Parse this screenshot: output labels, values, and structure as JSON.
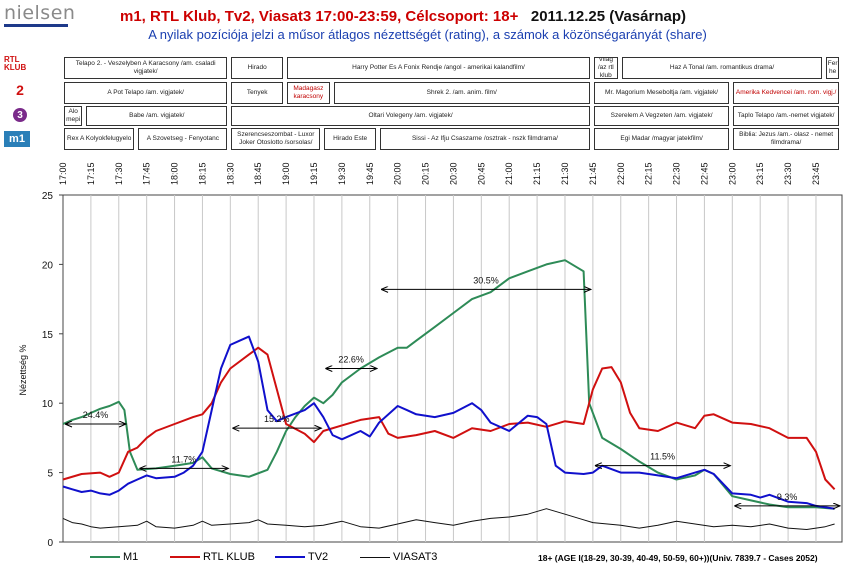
{
  "header": {
    "logo": "nielsen",
    "title_channels": "m1, RTL Klub, Tv2, Viasat3 17:00-23:59, Célcsoport: 18+",
    "title_date": "2011.12.25 (Vasárnap)",
    "subtitle": "A nyilak pozíciója jelzi a műsor átlagos nézettségét (rating), a számok a közönségarányát (share)"
  },
  "channel_icons": {
    "rtl": "RTL KLUB",
    "tv2": "2",
    "viasat3": "3",
    "m1": "m1"
  },
  "programs": {
    "rtl": [
      {
        "title": "Telapo 2. - Veszelyben A Karacsony /am. csaladi vigjatek/",
        "start": "17:00",
        "end": "18:30"
      },
      {
        "title": "Hirado",
        "start": "18:30",
        "end": "19:00"
      },
      {
        "title": "Harry Potter Es A Fonix Rendje /angol - amerikai kalandfilm/",
        "start": "19:00",
        "end": "21:45"
      },
      {
        "title": "Valo Vilag /az rtl klub valosag",
        "start": "21:45",
        "end": "22:00"
      },
      {
        "title": "Haz A Tonal /am. romantikus drama/",
        "start": "22:00",
        "end": "23:50"
      },
      {
        "title": "Fer he",
        "start": "23:50",
        "end": "23:59"
      }
    ],
    "tv2": [
      {
        "title": "A Pot Telapo /am. vigjatek/",
        "start": "17:00",
        "end": "18:30"
      },
      {
        "title": "Tenyek",
        "start": "18:30",
        "end": "19:00"
      },
      {
        "title": "Madagasz karacsony",
        "start": "19:00",
        "end": "19:25"
      },
      {
        "title": "Shrek 2. /am. anim. film/",
        "start": "19:25",
        "end": "21:45"
      },
      {
        "title": "Mr. Magorium Meseboltja /am. vigjatek/",
        "start": "21:45",
        "end": "23:00"
      },
      {
        "title": "Amerika Kedvencei /am. rom. vigj./",
        "start": "23:00",
        "end": "23:59"
      }
    ],
    "viasat3": [
      {
        "title": "Alo mepi",
        "start": "17:00",
        "end": "17:12"
      },
      {
        "title": "Babe /am. vigjatek/",
        "start": "17:12",
        "end": "18:30"
      },
      {
        "title": "Oltari Volegeny /am. vigjatek/",
        "start": "18:30",
        "end": "21:45"
      },
      {
        "title": "Szerelem A Vegzeten /am. vigjatek/",
        "start": "21:45",
        "end": "23:00"
      },
      {
        "title": "Taplo Telapo /am.-nemet vigjatek/",
        "start": "23:00",
        "end": "23:59"
      }
    ],
    "m1": [
      {
        "title": "Rex A Kolyokfelugyelo",
        "start": "17:00",
        "end": "17:40"
      },
      {
        "title": "A Szovetseg - Fenyotanc",
        "start": "17:40",
        "end": "18:30"
      },
      {
        "title": "Szerencseszombat - Luxor Joker Otoslotto /sorsolas/",
        "start": "18:30",
        "end": "19:20"
      },
      {
        "title": "Hirado Este",
        "start": "19:20",
        "end": "19:50"
      },
      {
        "title": "Sissi - Az Ifju Csaszarne /osztrak - nszk filmdrama/",
        "start": "19:50",
        "end": "21:45"
      },
      {
        "title": "Egi Madar /magyar jatekfilm/",
        "start": "21:45",
        "end": "23:00"
      },
      {
        "title": "Biblia: Jezus /am.- olasz - nemet filmdrama/",
        "start": "23:00",
        "end": "23:59"
      }
    ]
  },
  "chart_data": {
    "type": "line",
    "xlabel": "",
    "ylabel": "Nézettség %",
    "ylim": [
      0,
      25
    ],
    "yticks": [
      0,
      5,
      10,
      15,
      20,
      25
    ],
    "x_ticks": [
      "17:00",
      "17:15",
      "17:30",
      "17:45",
      "18:00",
      "18:15",
      "18:30",
      "18:45",
      "19:00",
      "19:15",
      "19:30",
      "19:45",
      "20:00",
      "20:15",
      "20:30",
      "20:45",
      "21:00",
      "21:15",
      "21:30",
      "21:45",
      "22:00",
      "22:15",
      "22:30",
      "22:45",
      "23:00",
      "23:15",
      "23:30",
      "23:45"
    ],
    "x_range": [
      "17:00",
      "23:59"
    ],
    "grid": "vertical",
    "legend_position": "bottom",
    "series": [
      {
        "name": "M1",
        "color": "#2e8b57",
        "points": [
          [
            "17:00",
            8.5
          ],
          [
            "17:05",
            8.8
          ],
          [
            "17:10",
            9.0
          ],
          [
            "17:15",
            9.3
          ],
          [
            "17:20",
            9.6
          ],
          [
            "17:25",
            9.8
          ],
          [
            "17:30",
            10.1
          ],
          [
            "17:33",
            9.5
          ],
          [
            "17:36",
            6.5
          ],
          [
            "17:40",
            5.2
          ],
          [
            "17:50",
            5.3
          ],
          [
            "18:00",
            5.5
          ],
          [
            "18:10",
            5.7
          ],
          [
            "18:15",
            6.1
          ],
          [
            "18:20",
            5.3
          ],
          [
            "18:30",
            4.9
          ],
          [
            "18:40",
            4.7
          ],
          [
            "18:50",
            5.2
          ],
          [
            "18:55",
            6.5
          ],
          [
            "19:00",
            8.0
          ],
          [
            "19:05",
            9.0
          ],
          [
            "19:10",
            9.8
          ],
          [
            "19:15",
            10.4
          ],
          [
            "19:20",
            10.0
          ],
          [
            "19:25",
            10.6
          ],
          [
            "19:30",
            11.5
          ],
          [
            "19:40",
            12.5
          ],
          [
            "19:50",
            13.3
          ],
          [
            "20:00",
            14.0
          ],
          [
            "20:05",
            14.0
          ],
          [
            "20:10",
            14.5
          ],
          [
            "20:20",
            15.5
          ],
          [
            "20:30",
            16.5
          ],
          [
            "20:40",
            17.5
          ],
          [
            "20:50",
            18.0
          ],
          [
            "21:00",
            19.0
          ],
          [
            "21:10",
            19.5
          ],
          [
            "21:20",
            20.0
          ],
          [
            "21:30",
            20.3
          ],
          [
            "21:40",
            19.5
          ],
          [
            "21:43",
            10.0
          ],
          [
            "21:50",
            7.5
          ],
          [
            "22:00",
            6.7
          ],
          [
            "22:10",
            5.8
          ],
          [
            "22:20",
            5.0
          ],
          [
            "22:30",
            4.5
          ],
          [
            "22:40",
            4.8
          ],
          [
            "22:45",
            5.2
          ],
          [
            "22:50",
            4.9
          ],
          [
            "23:00",
            3.3
          ],
          [
            "23:10",
            3.0
          ],
          [
            "23:20",
            2.7
          ],
          [
            "23:30",
            2.5
          ],
          [
            "23:45",
            2.5
          ],
          [
            "23:55",
            2.4
          ]
        ]
      },
      {
        "name": "RTL KLUB",
        "color": "#d01010",
        "points": [
          [
            "17:00",
            4.5
          ],
          [
            "17:10",
            4.9
          ],
          [
            "17:20",
            5.0
          ],
          [
            "17:25",
            4.7
          ],
          [
            "17:30",
            5.0
          ],
          [
            "17:35",
            6.5
          ],
          [
            "17:40",
            6.8
          ],
          [
            "17:45",
            7.5
          ],
          [
            "17:50",
            8.0
          ],
          [
            "18:00",
            8.5
          ],
          [
            "18:10",
            9.0
          ],
          [
            "18:15",
            9.2
          ],
          [
            "18:20",
            10.0
          ],
          [
            "18:25",
            11.5
          ],
          [
            "18:30",
            12.5
          ],
          [
            "18:40",
            13.5
          ],
          [
            "18:45",
            14.0
          ],
          [
            "18:50",
            13.5
          ],
          [
            "18:55",
            11.0
          ],
          [
            "19:00",
            8.5
          ],
          [
            "19:10",
            7.8
          ],
          [
            "19:15",
            7.2
          ],
          [
            "19:20",
            8.0
          ],
          [
            "19:30",
            8.4
          ],
          [
            "19:40",
            8.8
          ],
          [
            "19:50",
            9.0
          ],
          [
            "19:55",
            7.8
          ],
          [
            "20:00",
            7.5
          ],
          [
            "20:10",
            7.7
          ],
          [
            "20:20",
            8.0
          ],
          [
            "20:30",
            7.5
          ],
          [
            "20:40",
            8.2
          ],
          [
            "20:50",
            8.0
          ],
          [
            "21:00",
            8.5
          ],
          [
            "21:10",
            8.6
          ],
          [
            "21:20",
            8.3
          ],
          [
            "21:30",
            8.7
          ],
          [
            "21:40",
            8.5
          ],
          [
            "21:45",
            11.0
          ],
          [
            "21:50",
            12.5
          ],
          [
            "21:55",
            12.6
          ],
          [
            "22:00",
            11.5
          ],
          [
            "22:05",
            9.3
          ],
          [
            "22:10",
            8.2
          ],
          [
            "22:20",
            8.0
          ],
          [
            "22:30",
            8.6
          ],
          [
            "22:40",
            8.2
          ],
          [
            "22:45",
            9.1
          ],
          [
            "22:50",
            9.2
          ],
          [
            "23:00",
            8.6
          ],
          [
            "23:10",
            8.5
          ],
          [
            "23:20",
            8.2
          ],
          [
            "23:30",
            7.5
          ],
          [
            "23:40",
            7.5
          ],
          [
            "23:45",
            6.5
          ],
          [
            "23:50",
            4.5
          ],
          [
            "23:55",
            3.8
          ]
        ]
      },
      {
        "name": "TV2",
        "color": "#1010cc",
        "points": [
          [
            "17:00",
            4.0
          ],
          [
            "17:05",
            3.8
          ],
          [
            "17:10",
            3.6
          ],
          [
            "17:15",
            3.7
          ],
          [
            "17:20",
            3.5
          ],
          [
            "17:25",
            3.4
          ],
          [
            "17:30",
            3.7
          ],
          [
            "17:35",
            4.2
          ],
          [
            "17:40",
            4.5
          ],
          [
            "17:45",
            4.8
          ],
          [
            "17:50",
            4.6
          ],
          [
            "18:00",
            4.7
          ],
          [
            "18:05",
            5.0
          ],
          [
            "18:10",
            5.5
          ],
          [
            "18:15",
            6.5
          ],
          [
            "18:20",
            9.5
          ],
          [
            "18:25",
            12.5
          ],
          [
            "18:30",
            14.2
          ],
          [
            "18:35",
            14.5
          ],
          [
            "18:40",
            14.8
          ],
          [
            "18:45",
            13.0
          ],
          [
            "18:50",
            9.5
          ],
          [
            "18:55",
            8.7
          ],
          [
            "19:00",
            9.0
          ],
          [
            "19:10",
            9.5
          ],
          [
            "19:15",
            10.0
          ],
          [
            "19:20",
            9.0
          ],
          [
            "19:25",
            7.7
          ],
          [
            "19:30",
            7.4
          ],
          [
            "19:40",
            8.0
          ],
          [
            "19:45",
            7.6
          ],
          [
            "19:50",
            8.6
          ],
          [
            "20:00",
            9.8
          ],
          [
            "20:05",
            9.5
          ],
          [
            "20:10",
            9.2
          ],
          [
            "20:20",
            9.0
          ],
          [
            "20:30",
            9.3
          ],
          [
            "20:40",
            10.0
          ],
          [
            "20:45",
            9.5
          ],
          [
            "20:50",
            8.6
          ],
          [
            "21:00",
            8.0
          ],
          [
            "21:10",
            9.1
          ],
          [
            "21:15",
            9.0
          ],
          [
            "21:20",
            8.5
          ],
          [
            "21:25",
            5.5
          ],
          [
            "21:30",
            5.0
          ],
          [
            "21:40",
            4.9
          ],
          [
            "21:45",
            5.0
          ],
          [
            "21:50",
            5.5
          ],
          [
            "22:00",
            5.0
          ],
          [
            "22:10",
            5.0
          ],
          [
            "22:20",
            4.8
          ],
          [
            "22:30",
            4.6
          ],
          [
            "22:40",
            5.0
          ],
          [
            "22:45",
            5.2
          ],
          [
            "22:50",
            4.9
          ],
          [
            "23:00",
            3.5
          ],
          [
            "23:10",
            3.4
          ],
          [
            "23:15",
            3.2
          ],
          [
            "23:20",
            3.4
          ],
          [
            "23:30",
            2.9
          ],
          [
            "23:40",
            2.8
          ],
          [
            "23:45",
            2.6
          ],
          [
            "23:55",
            2.4
          ]
        ]
      },
      {
        "name": "VIASAT3",
        "color": "#111111",
        "points": [
          [
            "17:00",
            1.7
          ],
          [
            "17:05",
            1.4
          ],
          [
            "17:10",
            1.3
          ],
          [
            "17:15",
            1.1
          ],
          [
            "17:20",
            1.0
          ],
          [
            "17:30",
            1.1
          ],
          [
            "17:40",
            1.2
          ],
          [
            "17:45",
            1.5
          ],
          [
            "17:50",
            1.1
          ],
          [
            "18:00",
            1.0
          ],
          [
            "18:10",
            1.2
          ],
          [
            "18:15",
            1.5
          ],
          [
            "18:20",
            1.2
          ],
          [
            "18:30",
            1.3
          ],
          [
            "18:40",
            1.4
          ],
          [
            "18:45",
            1.6
          ],
          [
            "18:50",
            1.3
          ],
          [
            "19:00",
            1.2
          ],
          [
            "19:10",
            1.1
          ],
          [
            "19:20",
            1.2
          ],
          [
            "19:30",
            1.5
          ],
          [
            "19:40",
            1.1
          ],
          [
            "19:50",
            1.0
          ],
          [
            "20:00",
            1.3
          ],
          [
            "20:10",
            1.6
          ],
          [
            "20:20",
            1.4
          ],
          [
            "20:30",
            1.2
          ],
          [
            "20:40",
            1.5
          ],
          [
            "20:50",
            1.7
          ],
          [
            "21:00",
            1.8
          ],
          [
            "21:10",
            2.0
          ],
          [
            "21:20",
            2.4
          ],
          [
            "21:30",
            2.0
          ],
          [
            "21:40",
            1.6
          ],
          [
            "21:45",
            1.4
          ],
          [
            "22:00",
            1.2
          ],
          [
            "22:10",
            1.0
          ],
          [
            "22:20",
            1.2
          ],
          [
            "22:30",
            1.5
          ],
          [
            "22:40",
            1.3
          ],
          [
            "22:50",
            1.1
          ],
          [
            "23:00",
            1.2
          ],
          [
            "23:10",
            1.1
          ],
          [
            "23:20",
            1.3
          ],
          [
            "23:30",
            1.0
          ],
          [
            "23:40",
            0.9
          ],
          [
            "23:50",
            1.1
          ],
          [
            "23:55",
            1.3
          ]
        ]
      }
    ],
    "annotations": [
      {
        "label": "24.4%",
        "start": "17:00",
        "end": "17:35",
        "rating": 8.5
      },
      {
        "label": "11.7%",
        "start": "17:40",
        "end": "18:30",
        "rating": 5.3
      },
      {
        "label": "15.2%",
        "start": "18:30",
        "end": "19:20",
        "rating": 8.2
      },
      {
        "label": "22.6%",
        "start": "19:20",
        "end": "19:50",
        "rating": 12.5
      },
      {
        "label": "30.5%",
        "start": "19:50",
        "end": "21:45",
        "rating": 18.2
      },
      {
        "label": "11.5%",
        "start": "21:45",
        "end": "23:00",
        "rating": 5.5
      },
      {
        "label": "9.3%",
        "start": "23:00",
        "end": "23:59",
        "rating": 2.6
      }
    ]
  },
  "legend": [
    {
      "label": "M1",
      "color": "#2e8b57"
    },
    {
      "label": "RTL KLUB",
      "color": "#d01010"
    },
    {
      "label": "TV2",
      "color": "#1010cc"
    },
    {
      "label": "VIASAT3",
      "color": "#111111"
    }
  ],
  "footnote": "18+ (AGE I(18-29, 30-39, 40-49, 50-59, 60+))(Univ. 7839.7 - Cases 2052)"
}
